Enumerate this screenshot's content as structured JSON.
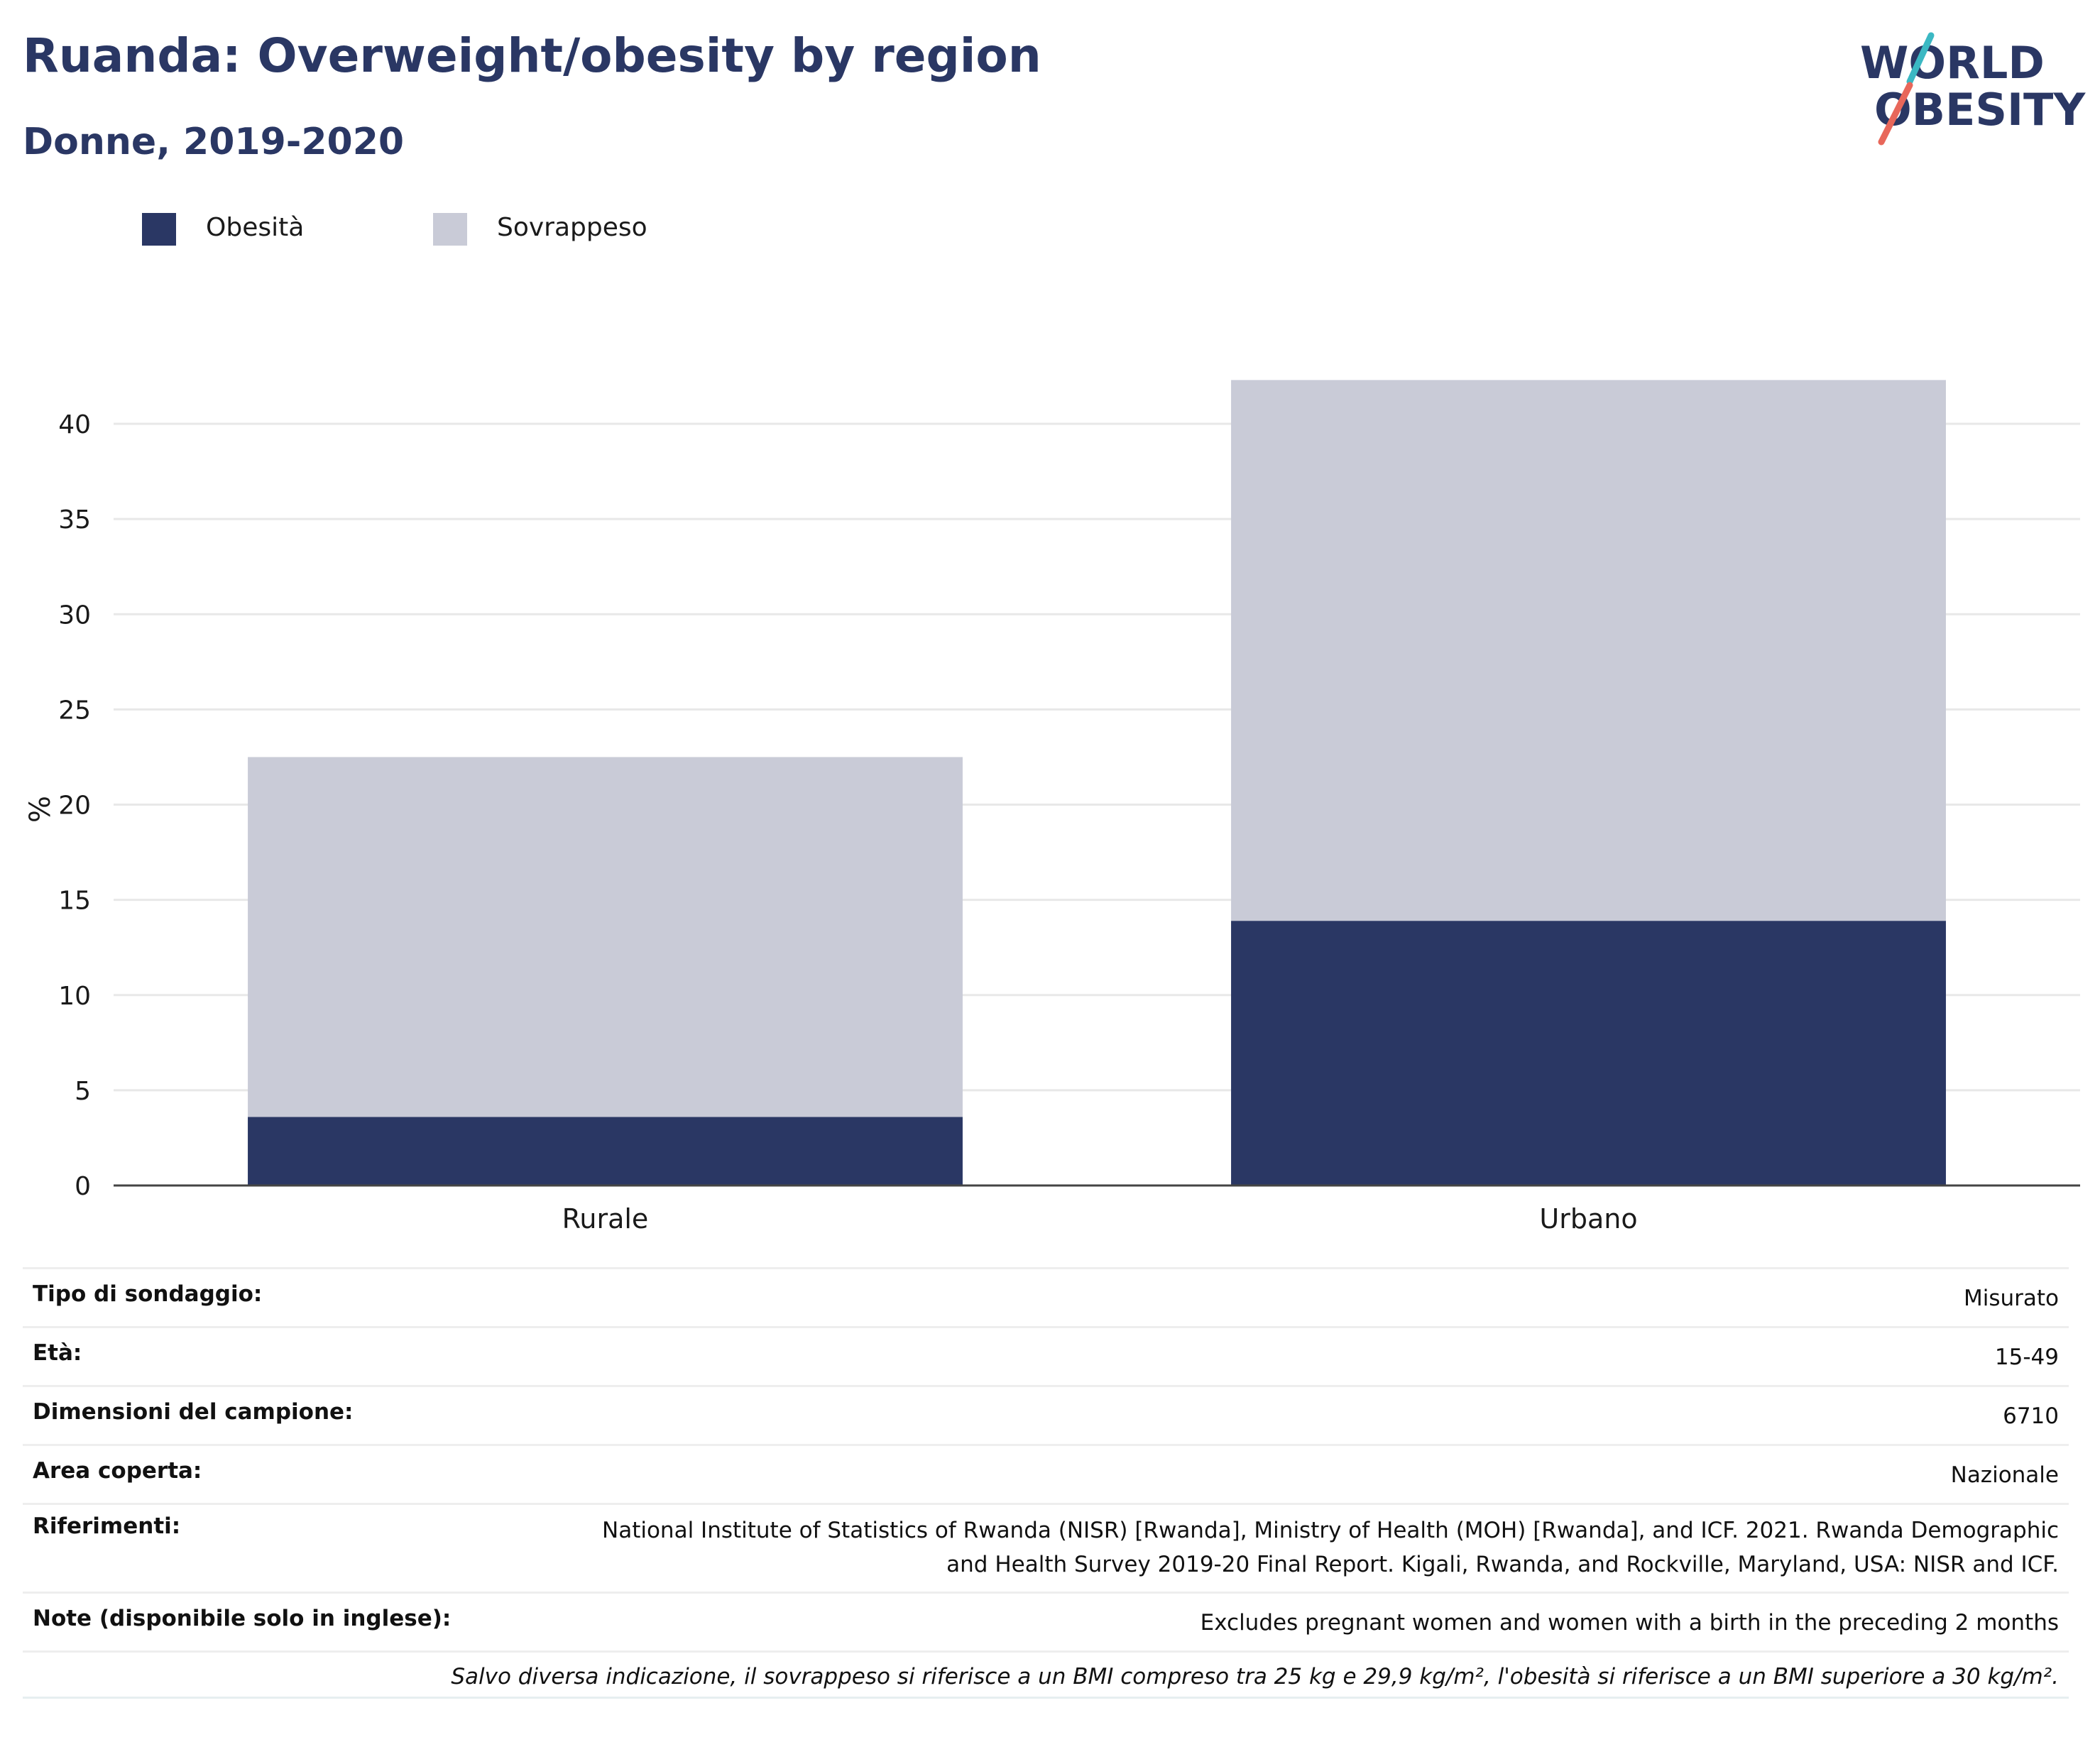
{
  "header": {
    "title": "Ruanda: Overweight/obesity by region",
    "subtitle": "Donne, 2019-2020"
  },
  "logo": {
    "line1": "WORLD",
    "line2": "OBESITY",
    "colors": {
      "text": "#2a3764",
      "slash_top": "#3bb8c3",
      "slash_bottom": "#e8675a"
    }
  },
  "legend": [
    {
      "label": "Obesità",
      "color": "#2a3764"
    },
    {
      "label": "Sovrappeso",
      "color": "#c9cbd7"
    }
  ],
  "chart_data": {
    "type": "bar",
    "stacked": true,
    "categories": [
      "Rurale",
      "Urbano"
    ],
    "series": [
      {
        "name": "Obesità",
        "color": "#2a3764",
        "values": [
          3.6,
          13.9
        ]
      },
      {
        "name": "Sovrappeso",
        "color": "#c9cbd7",
        "values": [
          18.9,
          28.4
        ]
      }
    ],
    "xlabel": "",
    "ylabel": "%",
    "ylim": [
      0,
      42.5
    ],
    "yticks": [
      0,
      5,
      10,
      15,
      20,
      25,
      30,
      35,
      40
    ],
    "grid": true,
    "legend_position": "top-left"
  },
  "info": {
    "rows": [
      {
        "label": "Tipo di sondaggio:",
        "value": "Misurato"
      },
      {
        "label": "Età:",
        "value": "15-49"
      },
      {
        "label": "Dimensioni del campione:",
        "value": "6710"
      },
      {
        "label": "Area coperta:",
        "value": "Nazionale"
      }
    ],
    "references": {
      "label": "Riferimenti:",
      "line1": "National Institute of Statistics of Rwanda (NISR) [Rwanda], Ministry of Health (MOH) [Rwanda], and ICF. 2021. Rwanda Demographic",
      "line2": "and Health Survey 2019-20 Final Report. Kigali, Rwanda, and Rockville, Maryland, USA: NISR and ICF."
    },
    "notes": {
      "label": "Note (disponibile solo in inglese):",
      "value": "Excludes pregnant women and women with a birth in the preceding 2 months"
    },
    "footnote": "Salvo diversa indicazione, il sovrappeso si riferisce a un BMI compreso tra 25 kg e 29,9 kg/m², l'obesità si riferisce a un BMI superiore a 30 kg/m²."
  }
}
